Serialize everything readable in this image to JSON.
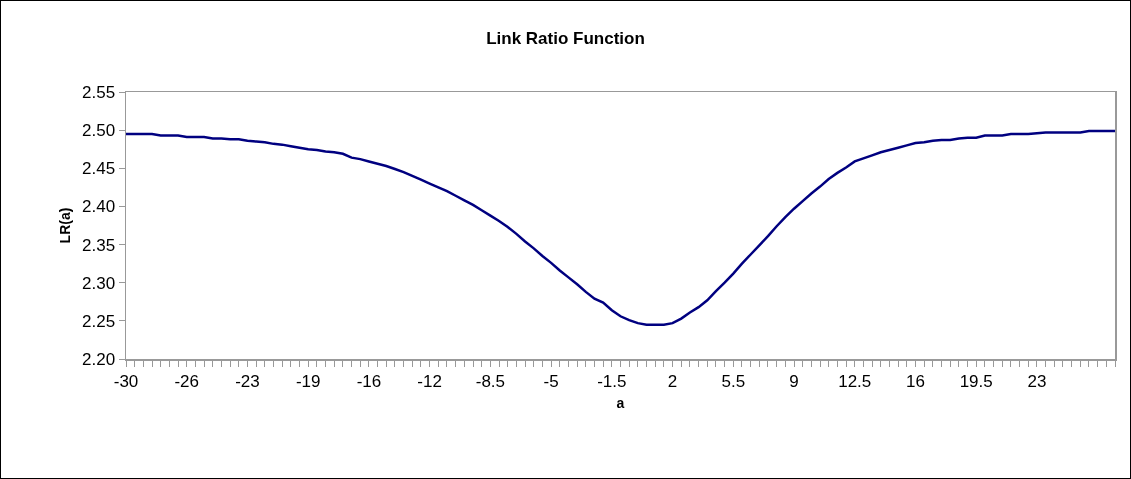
{
  "chart_data": {
    "type": "line",
    "title": "Link Ratio Function",
    "xlabel": "a",
    "ylabel": "LR(a)",
    "categories": [
      "-30",
      null,
      null,
      null,
      null,
      null,
      null,
      "-26",
      null,
      null,
      null,
      null,
      null,
      null,
      "-23",
      null,
      null,
      null,
      null,
      null,
      null,
      "-19",
      null,
      null,
      null,
      null,
      null,
      null,
      "-16",
      null,
      null,
      null,
      null,
      null,
      null,
      "-12",
      null,
      null,
      null,
      null,
      null,
      null,
      "-8.5",
      null,
      null,
      null,
      null,
      null,
      null,
      "-5",
      null,
      null,
      null,
      null,
      null,
      null,
      "-1.5",
      null,
      null,
      null,
      null,
      null,
      null,
      "2",
      null,
      null,
      null,
      null,
      null,
      null,
      "5.5",
      null,
      null,
      null,
      null,
      null,
      null,
      "9",
      null,
      null,
      null,
      null,
      null,
      null,
      "12.5",
      null,
      null,
      null,
      null,
      null,
      null,
      "16",
      null,
      null,
      null,
      null,
      null,
      null,
      "19.5",
      null,
      null,
      null,
      null,
      null,
      null,
      "23",
      null,
      null,
      null,
      null,
      null,
      null,
      null,
      null,
      null
    ],
    "series": [
      {
        "color": "#000080",
        "values": [
          2.495,
          2.495,
          2.495,
          2.495,
          2.493,
          2.493,
          2.493,
          2.491,
          2.491,
          2.491,
          2.489,
          2.489,
          2.488,
          2.488,
          2.486,
          2.485,
          2.484,
          2.482,
          2.481,
          2.479,
          2.477,
          2.475,
          2.474,
          2.472,
          2.471,
          2.469,
          2.464,
          2.462,
          2.459,
          2.456,
          2.453,
          2.449,
          2.445,
          2.44,
          2.435,
          2.43,
          2.425,
          2.42,
          2.414,
          2.408,
          2.402,
          2.395,
          2.388,
          2.381,
          2.373,
          2.364,
          2.354,
          2.345,
          2.335,
          2.326,
          2.316,
          2.307,
          2.298,
          2.288,
          2.279,
          2.274,
          2.264,
          2.256,
          2.251,
          2.247,
          2.245,
          2.245,
          2.245,
          2.247,
          2.253,
          2.261,
          2.268,
          2.277,
          2.289,
          2.3,
          2.312,
          2.325,
          2.337,
          2.349,
          2.361,
          2.374,
          2.386,
          2.397,
          2.407,
          2.417,
          2.426,
          2.436,
          2.444,
          2.451,
          2.459,
          2.463,
          2.467,
          2.471,
          2.474,
          2.477,
          2.48,
          2.483,
          2.484,
          2.486,
          2.487,
          2.487,
          2.489,
          2.49,
          2.49,
          2.493,
          2.493,
          2.493,
          2.495,
          2.495,
          2.495,
          2.496,
          2.497,
          2.497,
          2.497,
          2.497,
          2.497,
          2.499,
          2.499,
          2.499,
          2.499
        ]
      }
    ],
    "ylim": [
      2.2,
      2.55
    ],
    "yticks": [
      {
        "value": 2.2,
        "label": "2.20"
      },
      {
        "value": 2.25,
        "label": "2.25"
      },
      {
        "value": 2.3,
        "label": "2.30"
      },
      {
        "value": 2.35,
        "label": "2.35"
      },
      {
        "value": 2.4,
        "label": "2.40"
      },
      {
        "value": 2.45,
        "label": "2.45"
      },
      {
        "value": 2.5,
        "label": "2.50"
      },
      {
        "value": 2.55,
        "label": "2.55"
      }
    ],
    "grid": false,
    "marker": "none",
    "line_style": "solid"
  }
}
